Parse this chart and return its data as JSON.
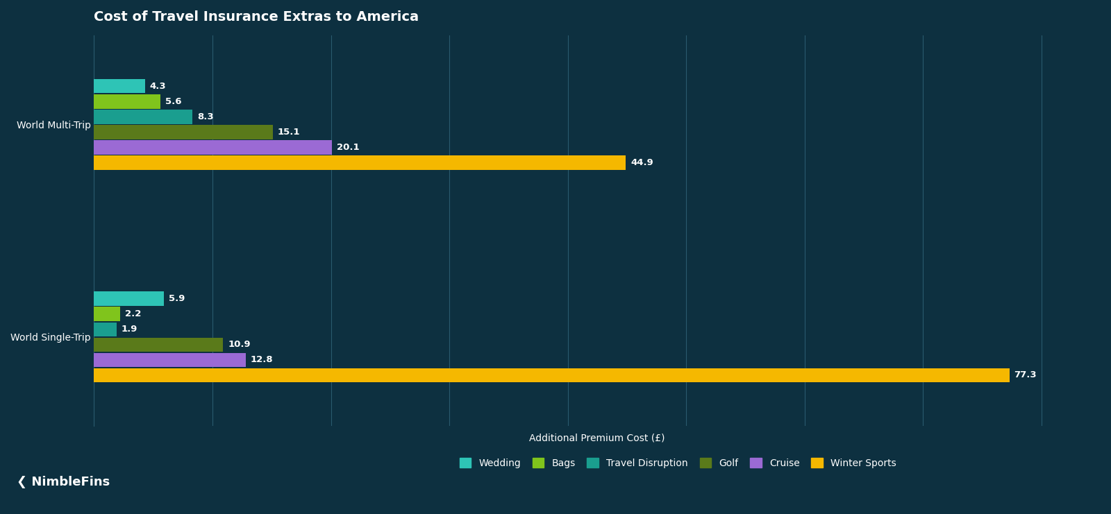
{
  "title": "Cost of Travel Insurance Extras to America",
  "xlabel": "Additional Premium Cost (£)",
  "background_color": "#0d3040",
  "plot_bg_color": "#0d3040",
  "grid_color": "#2a5a6e",
  "text_color": "#ffffff",
  "categories": [
    "World Multi-Trip",
    "World Single-Trip"
  ],
  "series": [
    {
      "label": "Wedding",
      "color": "#2ec4b6",
      "values": [
        4.3,
        5.9
      ]
    },
    {
      "label": "Bags",
      "color": "#80c41c",
      "values": [
        5.6,
        2.2
      ]
    },
    {
      "label": "Travel Disruption",
      "color": "#1a9e8f",
      "values": [
        8.3,
        1.9
      ]
    },
    {
      "label": "Golf",
      "color": "#5a7a1a",
      "values": [
        15.1,
        10.9
      ]
    },
    {
      "label": "Cruise",
      "color": "#9b6ad4",
      "values": [
        20.1,
        12.8
      ]
    },
    {
      "label": "Winter Sports",
      "color": "#f5b800",
      "values": [
        44.9,
        77.3
      ]
    }
  ],
  "xlim": [
    0,
    85
  ],
  "bar_height": 0.072,
  "label_fontsize": 9.5,
  "title_fontsize": 14,
  "axis_label_fontsize": 10,
  "tick_fontsize": 10,
  "legend_fontsize": 10,
  "nimblefins_text": "❮ NimbleFins"
}
